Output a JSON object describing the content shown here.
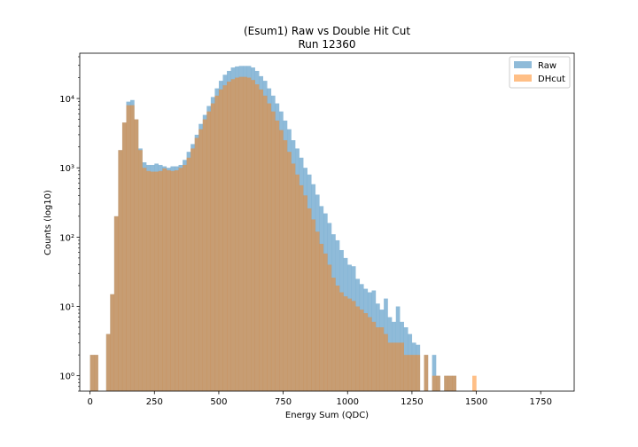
{
  "chart_data": {
    "type": "bar",
    "title": "(Esum1) Raw vs Double Hit Cut",
    "subtitle": "Run 12360",
    "xlabel": "Energy Sum (QDC)",
    "ylabel": "Counts (log10)",
    "xlim": [
      -40,
      1880
    ],
    "ylim": [
      0.6,
      45000
    ],
    "yscale": "log",
    "x_ticks": [
      0,
      250,
      500,
      750,
      1000,
      1250,
      1500,
      1750
    ],
    "y_ticks": [
      1,
      10,
      100,
      1000,
      10000
    ],
    "y_tick_labels": [
      "10⁰",
      "10¹",
      "10²",
      "10³",
      "10⁴"
    ],
    "bin_width": 15.625,
    "grid": false,
    "legend_position": "top-right",
    "series": [
      {
        "name": "Raw",
        "color": "#1f77b4",
        "opacity": 0.5,
        "values": [
          2,
          2,
          0,
          0,
          4,
          15,
          200,
          1800,
          4500,
          9000,
          9500,
          5000,
          1900,
          1200,
          1100,
          1100,
          1150,
          1100,
          1050,
          1000,
          1050,
          1050,
          1100,
          1300,
          1700,
          2200,
          3000,
          4300,
          5800,
          7800,
          10500,
          14000,
          18000,
          22000,
          25000,
          28000,
          29000,
          29500,
          29500,
          29500,
          28000,
          25000,
          21000,
          18000,
          14000,
          11000,
          8500,
          6500,
          4800,
          3600,
          2500,
          1900,
          1400,
          1000,
          800,
          580,
          410,
          280,
          220,
          160,
          110,
          90,
          65,
          50,
          40,
          38,
          25,
          21,
          18,
          16,
          17,
          11,
          9,
          13,
          7,
          6,
          10,
          6,
          5,
          4,
          3,
          2.8,
          0,
          2,
          0,
          2,
          1,
          0,
          1,
          1,
          1,
          0,
          0,
          0,
          0,
          0
        ]
      },
      {
        "name": "DHcut",
        "color": "#ff7f0e",
        "opacity": 0.5,
        "values": [
          2,
          2,
          0,
          0,
          4,
          15,
          200,
          1800,
          4500,
          8000,
          8000,
          5000,
          1800,
          1000,
          900,
          880,
          880,
          900,
          980,
          920,
          900,
          920,
          1000,
          1100,
          1400,
          1900,
          2700,
          3600,
          5000,
          6500,
          8500,
          11000,
          13500,
          15500,
          17500,
          19000,
          20000,
          20500,
          20500,
          20000,
          18500,
          16000,
          13500,
          11000,
          8500,
          6500,
          4800,
          3500,
          2500,
          1700,
          1150,
          800,
          560,
          400,
          260,
          180,
          120,
          80,
          58,
          40,
          26,
          20,
          16,
          14,
          13,
          12,
          10,
          9,
          8,
          7,
          6,
          5,
          5,
          4,
          3,
          3,
          3,
          3,
          2,
          2,
          2,
          2,
          0,
          2,
          0,
          1,
          1,
          0,
          1,
          1,
          1,
          0,
          0,
          0,
          0,
          1
        ]
      }
    ]
  }
}
